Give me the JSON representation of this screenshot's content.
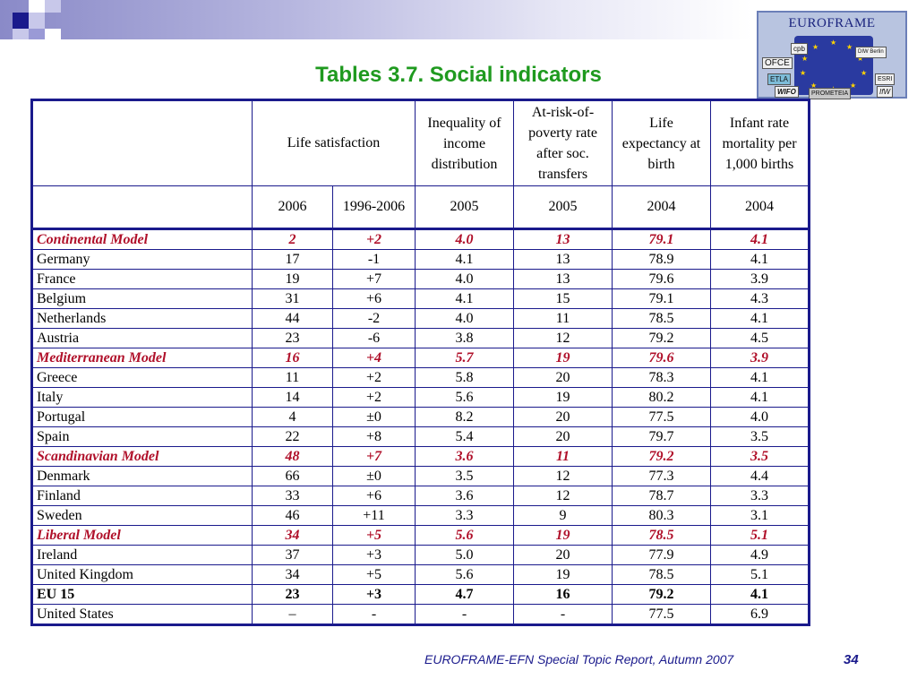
{
  "title": "Tables 3.7. Social indicators",
  "logo": {
    "title": "EUROFRAME",
    "members": [
      "cpb",
      "DIW Berlin",
      "OFCE",
      "ETLA",
      "ESRI",
      "WIFO",
      "PROMETEIA",
      "IfW"
    ]
  },
  "table": {
    "headers": [
      "",
      "Life satisfaction",
      "Inequality of income distribution",
      "At-risk-of-poverty rate after soc. transfers",
      "Life expectancy at birth",
      "Infant rate mortality per 1,000 births"
    ],
    "years": [
      "",
      "2006",
      "1996-2006",
      "2005",
      "2005",
      "2004",
      "2004"
    ],
    "rows": [
      {
        "type": "model",
        "cells": [
          "Continental Model",
          "2",
          "+2",
          "4.0",
          "13",
          "79.1",
          "4.1"
        ]
      },
      {
        "type": "country",
        "cells": [
          "Germany",
          "17",
          "-1",
          "4.1",
          "13",
          "78.9",
          "4.1"
        ]
      },
      {
        "type": "country",
        "cells": [
          "France",
          "19",
          "+7",
          "4.0",
          "13",
          "79.6",
          "3.9"
        ]
      },
      {
        "type": "country",
        "cells": [
          "Belgium",
          "31",
          "+6",
          "4.1",
          "15",
          "79.1",
          "4.3"
        ]
      },
      {
        "type": "country",
        "cells": [
          "Netherlands",
          "44",
          "-2",
          "4.0",
          "11",
          "78.5",
          "4.1"
        ]
      },
      {
        "type": "country",
        "cells": [
          "Austria",
          "23",
          "-6",
          "3.8",
          "12",
          "79.2",
          "4.5"
        ]
      },
      {
        "type": "model",
        "cells": [
          "Mediterranean Model",
          "16",
          "+4",
          "5.7",
          "19",
          "79.6",
          "3.9"
        ]
      },
      {
        "type": "country",
        "cells": [
          "Greece",
          "11",
          "+2",
          "5.8",
          "20",
          "78.3",
          "4.1"
        ]
      },
      {
        "type": "country",
        "cells": [
          "Italy",
          "14",
          "+2",
          "5.6",
          "19",
          "80.2",
          "4.1"
        ]
      },
      {
        "type": "country",
        "cells": [
          "Portugal",
          "4",
          "±0",
          "8.2",
          "20",
          "77.5",
          "4.0"
        ]
      },
      {
        "type": "country",
        "cells": [
          "Spain",
          "22",
          "+8",
          "5.4",
          "20",
          "79.7",
          "3.5"
        ]
      },
      {
        "type": "model",
        "cells": [
          "Scandinavian Model",
          "48",
          "+7",
          "3.6",
          "11",
          "79.2",
          "3.5"
        ]
      },
      {
        "type": "country",
        "cells": [
          "Denmark",
          "66",
          "±0",
          "3.5",
          "12",
          "77.3",
          "4.4"
        ]
      },
      {
        "type": "country",
        "cells": [
          "Finland",
          "33",
          "+6",
          "3.6",
          "12",
          "78.7",
          "3.3"
        ]
      },
      {
        "type": "country",
        "cells": [
          "Sweden",
          "46",
          "+11",
          "3.3",
          "9",
          "80.3",
          "3.1"
        ]
      },
      {
        "type": "model",
        "cells": [
          "Liberal Model",
          "34",
          "+5",
          "5.6",
          "19",
          "78.5",
          "5.1"
        ]
      },
      {
        "type": "country",
        "cells": [
          "Ireland",
          "37",
          "+3",
          "5.0",
          "20",
          "77.9",
          "4.9"
        ]
      },
      {
        "type": "country",
        "cells": [
          "United Kingdom",
          "34",
          "+5",
          "5.6",
          "19",
          "78.5",
          "5.1"
        ]
      },
      {
        "type": "eu",
        "cells": [
          "EU 15",
          "23",
          "+3",
          "4.7",
          "16",
          "79.2",
          "4.1"
        ]
      },
      {
        "type": "country",
        "cells": [
          "United States",
          "–",
          "-",
          "-",
          "-",
          "77.5",
          "6.9"
        ]
      }
    ]
  },
  "footer": {
    "text": "EUROFRAME-EFN Special Topic Report, Autumn 2007",
    "page": "34"
  },
  "colors": {
    "title": "#1f9a1f",
    "model_rows": "#b0102a",
    "table_border": "#1a1a8c",
    "footer": "#1a1a8c"
  }
}
